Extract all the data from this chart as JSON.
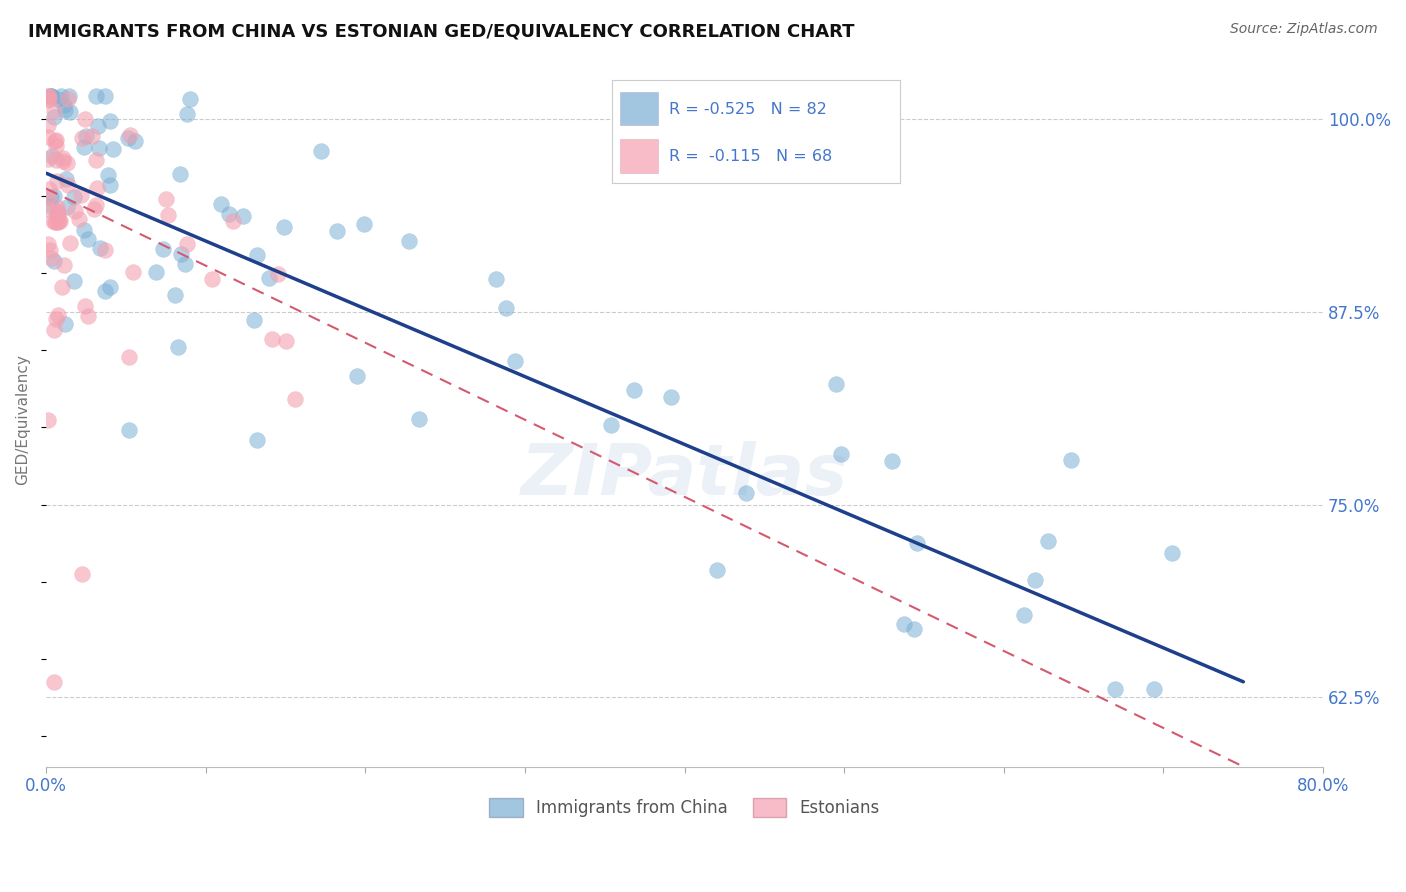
{
  "title": "IMMIGRANTS FROM CHINA VS ESTONIAN GED/EQUIVALENCY CORRELATION CHART",
  "source": "Source: ZipAtlas.com",
  "ylabel": "GED/Equivalency",
  "xlim": [
    0.0,
    80.0
  ],
  "ylim": [
    58.0,
    103.0
  ],
  "x_tick_positions": [
    0,
    10,
    20,
    30,
    40,
    50,
    60,
    70,
    80
  ],
  "x_tick_labels": [
    "0.0%",
    "",
    "",
    "",
    "",
    "",
    "",
    "",
    "80.0%"
  ],
  "y_tick_right": [
    62.5,
    75.0,
    87.5,
    100.0
  ],
  "y_tick_right_labels": [
    "62.5%",
    "75.0%",
    "87.5%",
    "100.0%"
  ],
  "blue_color": "#7bafd4",
  "pink_color": "#f4a0b0",
  "blue_line_color": "#1e3f8a",
  "pink_line_color": "#d45a70",
  "legend_blue_R": "R = -0.525",
  "legend_blue_N": "N = 82",
  "legend_pink_R": "R =  -0.115",
  "legend_pink_N": "N = 68",
  "label_color": "#4477cc",
  "watermark": "ZIPatlas",
  "seed": 99
}
